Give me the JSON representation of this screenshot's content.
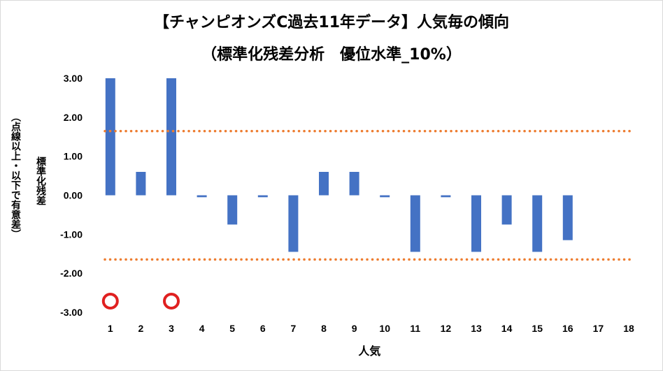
{
  "chart_data": {
    "type": "bar",
    "title": "【チャンピオンズC過去11年データ】人気毎の傾向",
    "subtitle": "（標準化残差分析　優位水準_10%）",
    "xlabel": "人気",
    "ylabel": "標準化残差",
    "ylabel_note": "（点線以上・以下で有意差）",
    "ylim": [
      -3.0,
      3.0
    ],
    "yticks": [
      "3.00",
      "2.00",
      "1.00",
      "0.00",
      "-1.00",
      "-2.00",
      "-3.00"
    ],
    "categories": [
      "1",
      "2",
      "3",
      "4",
      "5",
      "6",
      "7",
      "8",
      "9",
      "10",
      "11",
      "12",
      "13",
      "14",
      "15",
      "16",
      "17",
      "18"
    ],
    "values": [
      3.0,
      0.6,
      3.0,
      -0.05,
      -0.75,
      -0.05,
      -1.45,
      0.6,
      0.6,
      -0.05,
      -1.45,
      -0.05,
      -1.45,
      -0.75,
      -1.45,
      -1.15,
      0,
      0
    ],
    "thresholds": [
      1.645,
      -1.645
    ],
    "markers": [
      {
        "category": "1",
        "symbol": "circle"
      },
      {
        "category": "3",
        "symbol": "circle"
      }
    ],
    "colors": {
      "bar": "#4472c4",
      "threshold": "#ed7d31",
      "marker": "#e02020"
    },
    "grid": false,
    "legend": "none"
  }
}
